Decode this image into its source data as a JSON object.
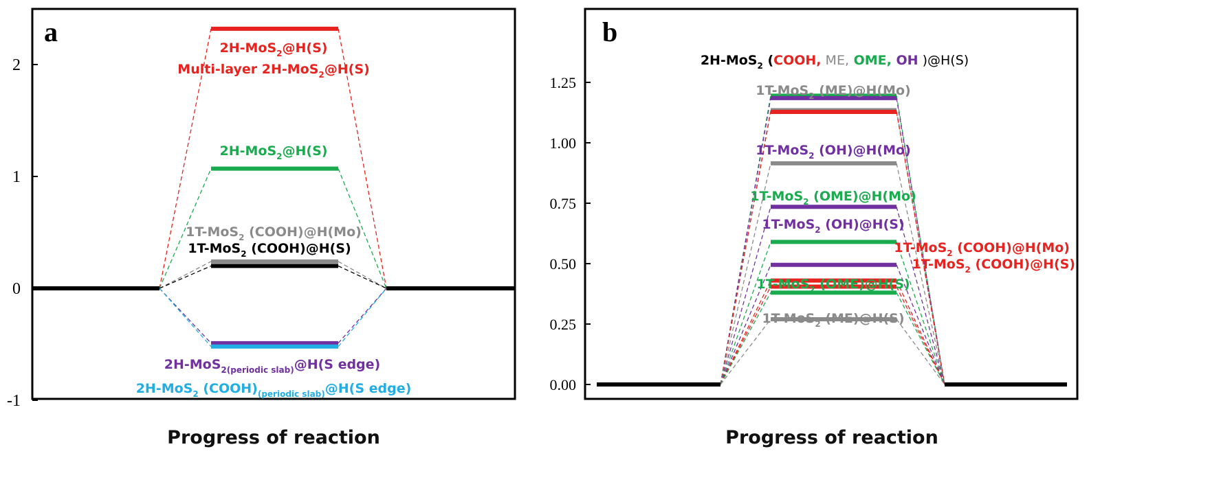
{
  "colors": {
    "black": "#000000",
    "red": "#e8231f",
    "green": "#1aab4f",
    "gray": "#8a8a8a",
    "purple": "#7030a0",
    "blue": "#20aee4"
  },
  "chart_data": [
    {
      "panel": "a",
      "type": "line",
      "xlabel": "Progress of reaction",
      "ylabel": "",
      "ylim": [
        -1,
        2.5
      ],
      "yticks": [
        "-1",
        "0",
        "1",
        "2"
      ],
      "reference_level": 0,
      "levels": [
        {
          "value": 2.32,
          "color": "red"
        },
        {
          "value": 1.07,
          "color": "green"
        },
        {
          "value": 0.24,
          "color": "gray"
        },
        {
          "value": 0.2,
          "color": "black"
        },
        {
          "value": -0.49,
          "color": "purple"
        },
        {
          "value": -0.52,
          "color": "blue"
        }
      ],
      "labels": [
        {
          "parts": [
            "2H-MoS",
            "2",
            "@H(S)"
          ],
          "color": "red"
        },
        {
          "parts": [
            "Multi-layer 2H-MoS",
            "2",
            "@H(S)"
          ],
          "color": "red"
        },
        {
          "parts": [
            "2H-MoS",
            "2",
            "@H(S)"
          ],
          "color": "green"
        },
        {
          "parts": [
            "1T-MoS",
            "2",
            " (COOH)@H(Mo)"
          ],
          "color": "gray"
        },
        {
          "parts": [
            "1T-MoS",
            "2",
            " (COOH)@H(S)"
          ],
          "color": "black"
        },
        {
          "parts": [
            "2H-MoS",
            "2(periodic  slab)",
            "@H(S edge)"
          ],
          "color": "purple"
        },
        {
          "parts": [
            "2H-MoS",
            "2",
            " (COOH)",
            "(periodic  slab)",
            "@H(S edge)"
          ],
          "color": "blue"
        }
      ]
    },
    {
      "panel": "b",
      "type": "line",
      "xlabel": "Progress of reaction",
      "ylabel": "",
      "ylim": [
        0,
        1.25
      ],
      "yticks": [
        "0.00",
        "0.25",
        "0.50",
        "0.75",
        "1.00",
        "1.25"
      ],
      "reference_level": 0,
      "levels": [
        {
          "value": 1.195,
          "color": "green"
        },
        {
          "value": 1.185,
          "color": "purple"
        },
        {
          "value": 1.135,
          "color": "gray"
        },
        {
          "value": 1.128,
          "color": "red"
        },
        {
          "value": 0.915,
          "color": "gray"
        },
        {
          "value": 0.735,
          "color": "purple"
        },
        {
          "value": 0.59,
          "color": "green"
        },
        {
          "value": 0.495,
          "color": "purple"
        },
        {
          "value": 0.43,
          "color": "red"
        },
        {
          "value": 0.405,
          "color": "red"
        },
        {
          "value": 0.38,
          "color": "green"
        },
        {
          "value": 0.27,
          "color": "gray"
        }
      ],
      "labels": [
        {
          "parts": [
            "2H-MoS",
            "2",
            " (",
            "COOH,",
            " ME,",
            " OME,",
            " OH",
            " )@H(S)"
          ],
          "colors": [
            "black",
            "black",
            "black",
            "red",
            "gray",
            "green",
            "purple",
            "black"
          ]
        },
        {
          "parts": [
            "1T-MoS",
            "2",
            " (ME)@H(Mo)"
          ],
          "color": "gray"
        },
        {
          "parts": [
            "1T-MoS",
            "2",
            " (OH)@H(Mo)"
          ],
          "color": "purple"
        },
        {
          "parts": [
            "1T-MoS",
            "2",
            " (OME)@H(Mo)"
          ],
          "color": "green"
        },
        {
          "parts": [
            "1T-MoS",
            "2",
            " (OH)@H(S)"
          ],
          "color": "purple"
        },
        {
          "parts": [
            "1T-MoS",
            "2",
            " (COOH)@H(Mo)"
          ],
          "color": "red"
        },
        {
          "parts": [
            "1T-MoS",
            "2",
            " (COOH)@H(S)"
          ],
          "color": "red"
        },
        {
          "parts": [
            "1T-MoS",
            "2",
            " (OME)@H(S)"
          ],
          "color": "green"
        },
        {
          "parts": [
            "1T-MoS",
            "2",
            " (ME)@H(S)"
          ],
          "color": "gray"
        }
      ]
    }
  ]
}
